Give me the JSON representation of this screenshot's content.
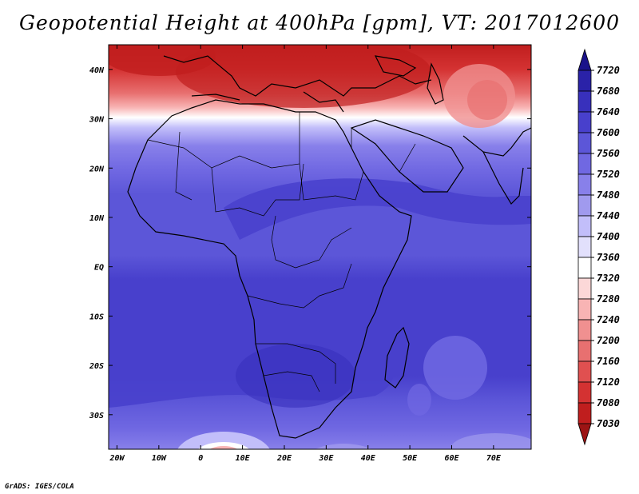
{
  "title": "Geopotential Height at 400hPa [gpm], VT: 2017012600",
  "credit": "GrADS: IGES/COLA",
  "map": {
    "variable": "Geopotential Height",
    "level": "400hPa",
    "units": "gpm",
    "valid_time": "2017012600",
    "lon_range": [
      -22,
      79
    ],
    "lat_range": [
      -37,
      45
    ],
    "x_ticks": [
      "20W",
      "10W",
      "0",
      "10E",
      "20E",
      "30E",
      "40E",
      "50E",
      "60E",
      "70E"
    ],
    "x_tick_values": [
      -20,
      -10,
      0,
      10,
      20,
      30,
      40,
      50,
      60,
      70
    ],
    "y_ticks": [
      "40N",
      "30N",
      "20N",
      "10N",
      "EQ",
      "10S",
      "20S",
      "30S"
    ],
    "y_tick_values": [
      40,
      30,
      20,
      10,
      0,
      -10,
      -20,
      -30
    ]
  },
  "colorbar": {
    "levels": [
      "7720",
      "7680",
      "7640",
      "7600",
      "7560",
      "7520",
      "7480",
      "7440",
      "7400",
      "7360",
      "7320",
      "7280",
      "7240",
      "7200",
      "7160",
      "7120",
      "7080",
      "7030"
    ],
    "colors": [
      "#1a128a",
      "#2a22a8",
      "#3830bc",
      "#4840cc",
      "#5c56d8",
      "#7068e2",
      "#8880ea",
      "#a09aee",
      "#c2befa",
      "#e2e0fc",
      "#ffffff",
      "#fcd8d8",
      "#f8b4b4",
      "#f09090",
      "#e87070",
      "#e05050",
      "#d43232",
      "#c01e1e",
      "#9c1414"
    ]
  }
}
